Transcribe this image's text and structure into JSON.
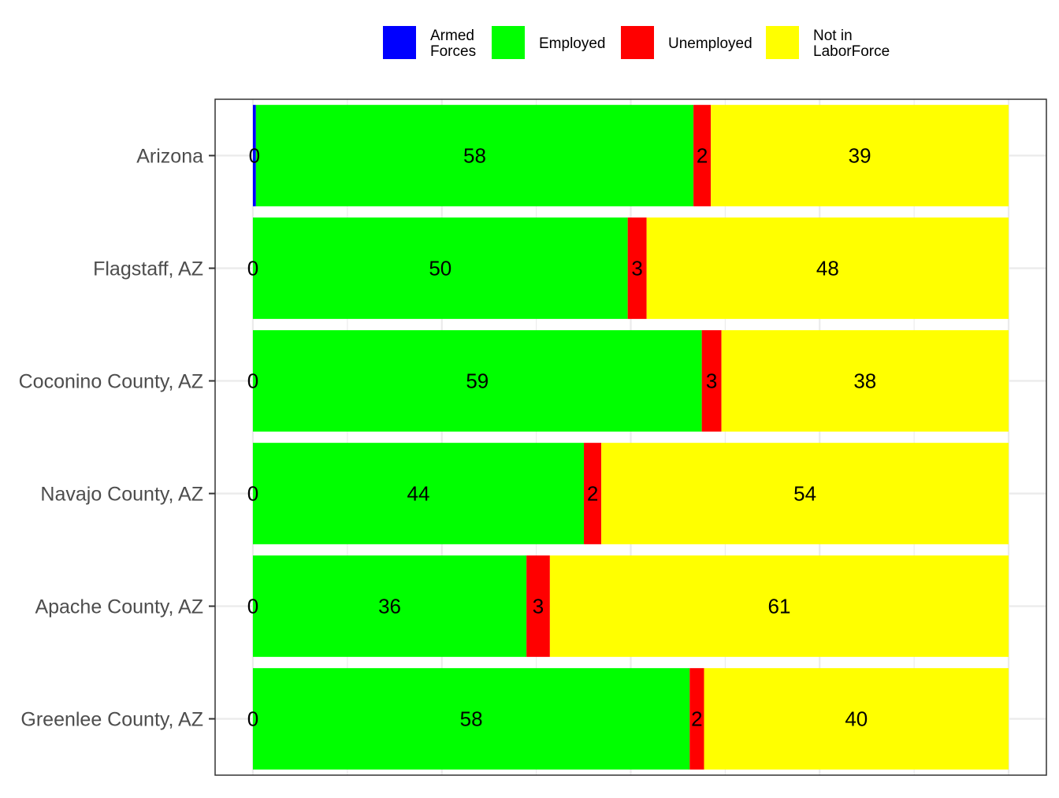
{
  "chart_data": {
    "type": "bar",
    "orientation": "horizontal",
    "stacked": true,
    "categories": [
      "Arizona",
      "Flagstaff, AZ",
      "Coconino County, AZ",
      "Navajo County, AZ",
      "Apache County, AZ",
      "Greenlee County, AZ"
    ],
    "series": [
      {
        "name": "Armed Forces",
        "legend_lines": [
          "Armed",
          "Forces"
        ],
        "color": "#0000FF",
        "values": [
          0.4,
          0,
          0,
          0,
          0,
          0
        ],
        "labels": [
          "0",
          "0",
          "0",
          "0",
          "0",
          "0"
        ]
      },
      {
        "name": "Employed",
        "legend_lines": [
          "Employed"
        ],
        "color": "#00FF00",
        "values": [
          57.9,
          49.6,
          59.4,
          43.8,
          36.2,
          57.8
        ],
        "labels": [
          "58",
          "50",
          "59",
          "44",
          "36",
          "58"
        ]
      },
      {
        "name": "Unemployed",
        "legend_lines": [
          "Unemployed"
        ],
        "color": "#FF0000",
        "values": [
          2.3,
          2.5,
          2.6,
          2.3,
          3.1,
          1.9
        ],
        "labels": [
          "2",
          "3",
          "3",
          "2",
          "3",
          "2"
        ]
      },
      {
        "name": "Not in LaborForce",
        "legend_lines": [
          "Not in",
          "LaborForce"
        ],
        "color": "#FFFF00",
        "values": [
          39.4,
          47.9,
          38.0,
          53.9,
          60.7,
          40.3
        ],
        "labels": [
          "39",
          "48",
          "38",
          "54",
          "61",
          "40"
        ]
      }
    ],
    "xlim": [
      -5,
      105
    ],
    "x_gridlines": [
      0,
      12.5,
      25,
      37.5,
      50,
      62.5,
      75,
      87.5,
      100
    ],
    "x_tick_labels_shown": false,
    "grid": true,
    "legend_position": "top",
    "title": "",
    "xlabel": "",
    "ylabel": ""
  }
}
